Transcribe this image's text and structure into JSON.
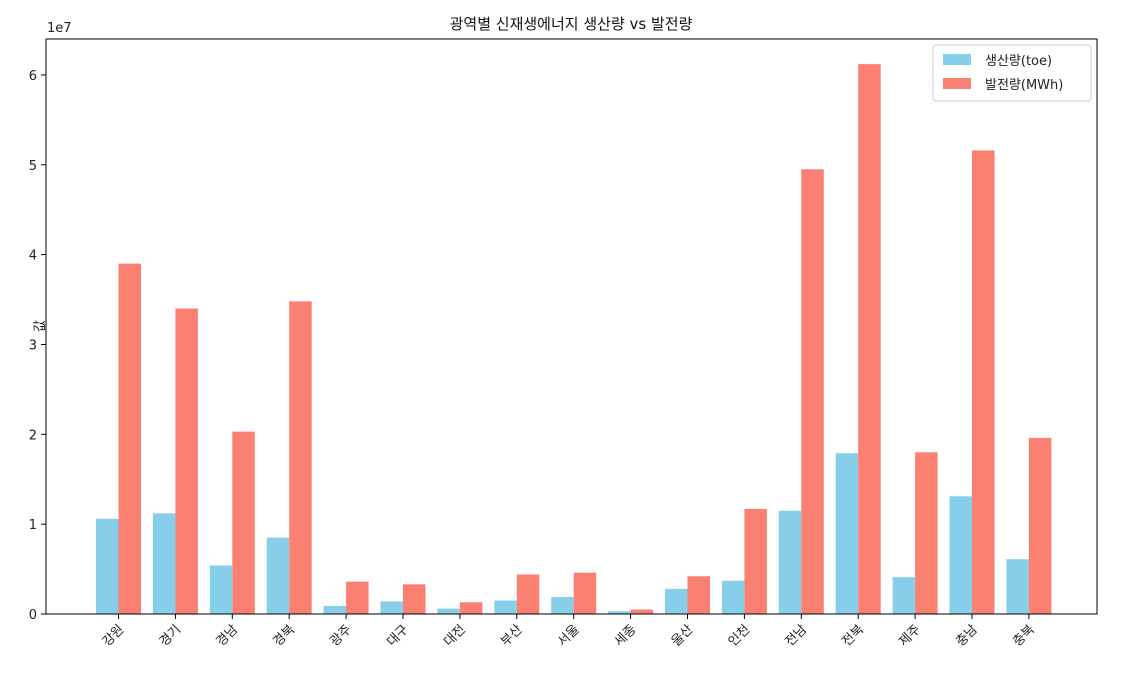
{
  "chart_data": {
    "type": "bar",
    "title": "광역별 신재생에너지 생산량 vs 발전량",
    "xlabel": "",
    "ylabel": "값",
    "y_offset_label": "1e7",
    "ylim": [
      0,
      64000000
    ],
    "yticks": [
      0,
      10000000,
      20000000,
      30000000,
      40000000,
      50000000,
      60000000
    ],
    "ytick_labels": [
      "0",
      "1",
      "2",
      "3",
      "4",
      "5",
      "6"
    ],
    "categories": [
      "강원",
      "경기",
      "경남",
      "경북",
      "광주",
      "대구",
      "대전",
      "부산",
      "서울",
      "세종",
      "울산",
      "인천",
      "전남",
      "전북",
      "제주",
      "충남",
      "충북"
    ],
    "series": [
      {
        "name": "생산량(toe)",
        "color": "#87CEEB",
        "values": [
          10600000,
          11200000,
          5400000,
          8500000,
          900000,
          1400000,
          600000,
          1500000,
          1900000,
          300000,
          2800000,
          3700000,
          11500000,
          17900000,
          4100000,
          13100000,
          6100000
        ]
      },
      {
        "name": "발전량(MWh)",
        "color": "#FA8072",
        "values": [
          39000000,
          34000000,
          20300000,
          34800000,
          3600000,
          3300000,
          1300000,
          4400000,
          4600000,
          500000,
          4200000,
          11700000,
          49500000,
          61200000,
          18000000,
          51600000,
          19600000
        ]
      }
    ],
    "grid": false,
    "legend_position": "top-right"
  }
}
